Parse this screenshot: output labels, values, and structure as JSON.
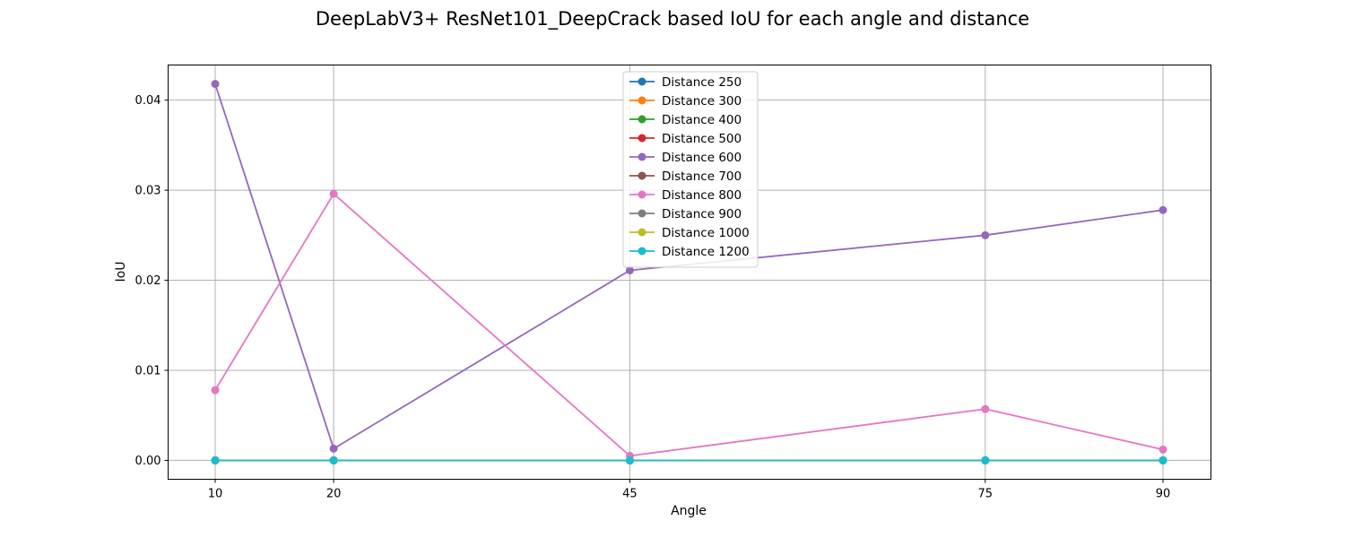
{
  "chart_data": {
    "type": "line",
    "title": "DeepLabV3+ ResNet101_DeepCrack based IoU for each angle and distance",
    "xlabel": "Angle",
    "ylabel": "IoU",
    "x": [
      10,
      20,
      45,
      75,
      90
    ],
    "x_tick_labels": [
      "10",
      "20",
      "45",
      "75",
      "90"
    ],
    "ylim": [
      -0.0021,
      0.0439
    ],
    "y_ticks": [
      0.0,
      0.01,
      0.02,
      0.03,
      0.04
    ],
    "y_tick_labels": [
      "0.00",
      "0.01",
      "0.02",
      "0.03",
      "0.04"
    ],
    "grid": true,
    "legend_position": "top-center",
    "series": [
      {
        "name": "Distance 250",
        "color": "#1f77b4",
        "values": [
          0,
          0,
          0,
          0,
          0
        ]
      },
      {
        "name": "Distance 300",
        "color": "#ff7f0e",
        "values": [
          0,
          0,
          0,
          0,
          0
        ]
      },
      {
        "name": "Distance 400",
        "color": "#2ca02c",
        "values": [
          0,
          0,
          0,
          0,
          0
        ]
      },
      {
        "name": "Distance 500",
        "color": "#d62728",
        "values": [
          0,
          0,
          0,
          0,
          0
        ]
      },
      {
        "name": "Distance 600",
        "color": "#9467bd",
        "values": [
          0.0418,
          0.0013,
          0.0211,
          0.025,
          0.0278
        ]
      },
      {
        "name": "Distance 700",
        "color": "#8c564b",
        "values": [
          0,
          0,
          0,
          0,
          0
        ]
      },
      {
        "name": "Distance 800",
        "color": "#e377c2",
        "values": [
          0.0078,
          0.0296,
          0.0005,
          0.0057,
          0.0012
        ]
      },
      {
        "name": "Distance 900",
        "color": "#7f7f7f",
        "values": [
          0,
          0,
          0,
          0,
          0
        ]
      },
      {
        "name": "Distance 1000",
        "color": "#bcbd22",
        "values": [
          0,
          0,
          0,
          0,
          0
        ]
      },
      {
        "name": "Distance 1200",
        "color": "#17becf",
        "values": [
          0,
          0,
          0,
          0,
          0
        ]
      }
    ]
  }
}
